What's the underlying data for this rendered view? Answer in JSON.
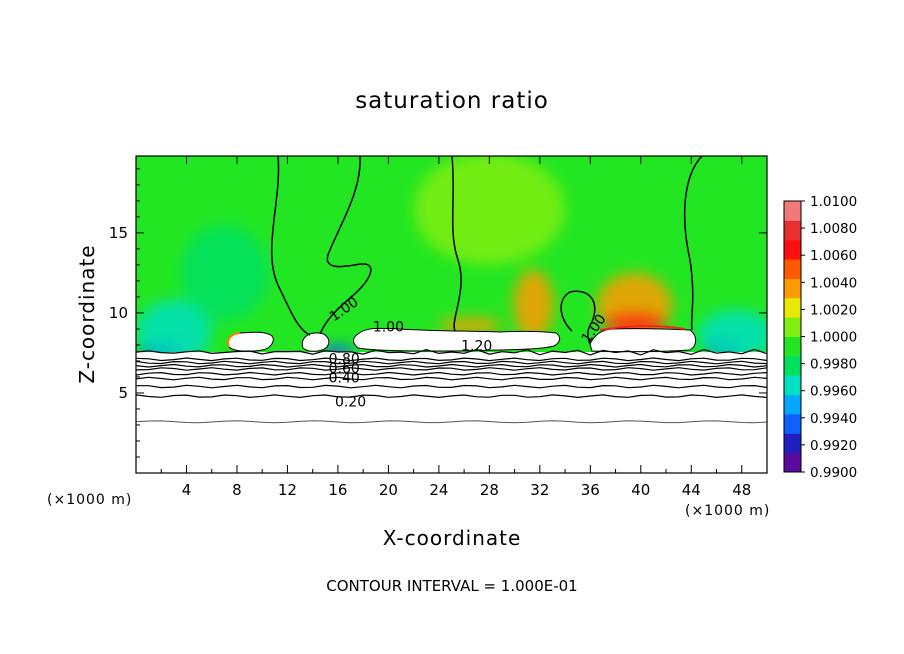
{
  "chart_data": {
    "type": "heatmap",
    "title": "saturation ratio",
    "xlabel": "X-coordinate",
    "ylabel": "Z-coordinate",
    "x_unit": "(×1000 m)",
    "x_unit_right": "(×1000 m)",
    "note": "CONTOUR INTERVAL = 1.000E-01",
    "xlim": [
      0,
      50
    ],
    "ylim": [
      0,
      19.8
    ],
    "x_ticks": [
      4,
      8,
      12,
      16,
      20,
      24,
      28,
      32,
      36,
      40,
      44,
      48
    ],
    "y_ticks": [
      5,
      10,
      15
    ],
    "colorbar": {
      "min": 0.99,
      "max": 1.01,
      "ticks": [
        "1.0100",
        "1.0080",
        "1.0060",
        "1.0040",
        "1.0020",
        "1.0000",
        "0.9980",
        "0.9960",
        "0.9940",
        "0.9920",
        "0.9900"
      ],
      "colors": [
        "#5a0a9c",
        "#2020c0",
        "#1060ff",
        "#00a8ff",
        "#00e0c0",
        "#00e060",
        "#22e622",
        "#80ee10",
        "#e8e800",
        "#ff9a00",
        "#ff5a00",
        "#ff1010",
        "#e83030",
        "#f07a7a"
      ]
    },
    "contour_labels": [
      {
        "text": "1.00",
        "x": 16.5,
        "y": 10.2,
        "angle": -35
      },
      {
        "text": "1.00",
        "x": 20.0,
        "y": 9.1,
        "angle": 0
      },
      {
        "text": "1.20",
        "x": 27.0,
        "y": 7.9,
        "angle": 0
      },
      {
        "text": "1.00",
        "x": 36.3,
        "y": 9.0,
        "angle": -55
      },
      {
        "text": "0.80",
        "x": 16.5,
        "y": 7.1,
        "angle": 0
      },
      {
        "text": "0.60",
        "x": 16.5,
        "y": 6.5,
        "angle": 0
      },
      {
        "text": "0.40",
        "x": 16.5,
        "y": 5.9,
        "angle": 0
      },
      {
        "text": "0.20",
        "x": 17.0,
        "y": 4.4,
        "angle": 0
      }
    ],
    "contour_levels": [
      0.2,
      0.4,
      0.6,
      0.8,
      1.0,
      1.2
    ],
    "blobs": [
      {
        "x": 2.0,
        "y": 7.5,
        "rx": 1.8,
        "ry": 0.7,
        "value": 0.992
      },
      {
        "x": 3.0,
        "y": 8.8,
        "rx": 3.0,
        "ry": 2.0,
        "value": 0.9962
      },
      {
        "x": 16.0,
        "y": 7.5,
        "rx": 1.2,
        "ry": 0.5,
        "value": 0.9935
      },
      {
        "x": 46.5,
        "y": 7.7,
        "rx": 1.5,
        "ry": 0.6,
        "value": 0.9925
      },
      {
        "x": 47.5,
        "y": 8.6,
        "rx": 3.0,
        "ry": 1.6,
        "value": 0.9962
      },
      {
        "x": 7.0,
        "y": 12.5,
        "rx": 3.5,
        "ry": 3.0,
        "value": 0.9985
      },
      {
        "x": 28.0,
        "y": 16.5,
        "rx": 6.0,
        "ry": 3.5,
        "value": 1.001
      },
      {
        "x": 31.5,
        "y": 10.5,
        "rx": 1.6,
        "ry": 2.2,
        "value": 1.003
      },
      {
        "x": 39.5,
        "y": 10.5,
        "rx": 3.0,
        "ry": 2.0,
        "value": 1.003
      },
      {
        "x": 39.5,
        "y": 9.4,
        "rx": 2.5,
        "ry": 0.6,
        "value": 1.0065
      },
      {
        "x": 26.5,
        "y": 9.2,
        "rx": 2.5,
        "ry": 0.5,
        "value": 1.004
      }
    ]
  }
}
